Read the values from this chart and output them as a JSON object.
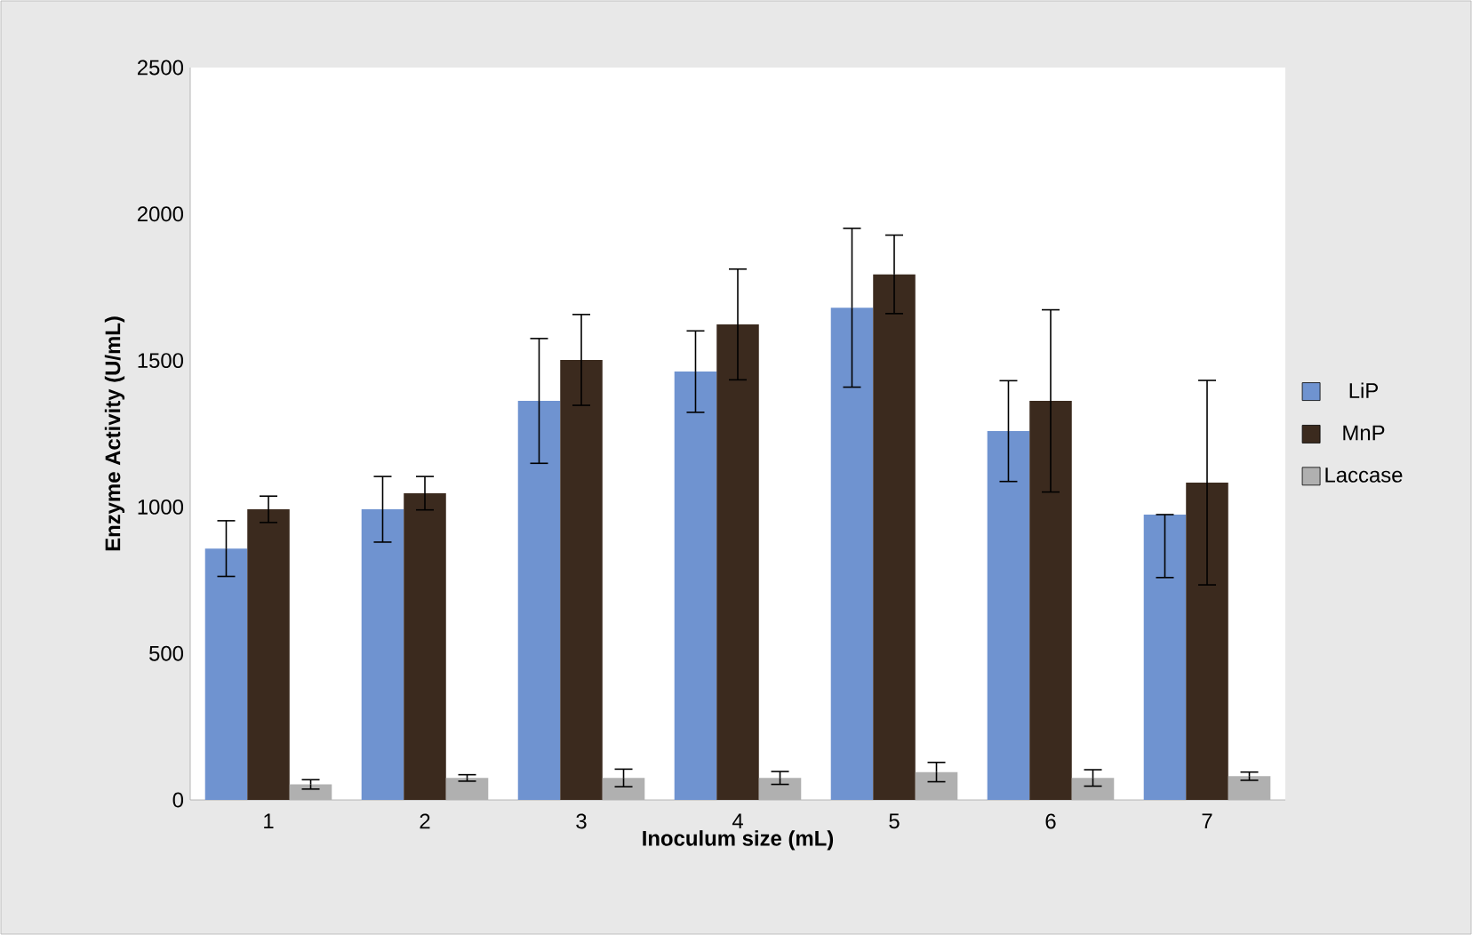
{
  "chart_data": {
    "type": "bar",
    "xlabel": "Inoculum size (mL)",
    "ylabel": "Enzyme Activity (U/mL)",
    "categories": [
      "1",
      "2",
      "3",
      "4",
      "5",
      "6",
      "7"
    ],
    "series": [
      {
        "name": "LiP",
        "color": "#6f93d0",
        "values": [
          858,
          992,
          1362,
          1462,
          1680,
          1259,
          974
        ],
        "errors": [
          95,
          112,
          213,
          139,
          271,
          172,
          [
            759,
            974
          ]
        ]
      },
      {
        "name": "MnP",
        "color": "#3b2a1e",
        "values": [
          992,
          1047,
          1502,
          1623,
          1794,
          1362,
          1083
        ],
        "errors": [
          45,
          57,
          155,
          189,
          134,
          311,
          349
        ]
      },
      {
        "name": "Laccase",
        "color": "#b0b0b0",
        "values": [
          53,
          75,
          75,
          75,
          95,
          75,
          81
        ],
        "errors": [
          16,
          11,
          30,
          22,
          33,
          28,
          14
        ]
      }
    ],
    "ylim": [
      0,
      2500
    ],
    "yticks": [
      0,
      500,
      1000,
      1500,
      2000,
      2500
    ],
    "grid": false,
    "legend": "right"
  }
}
